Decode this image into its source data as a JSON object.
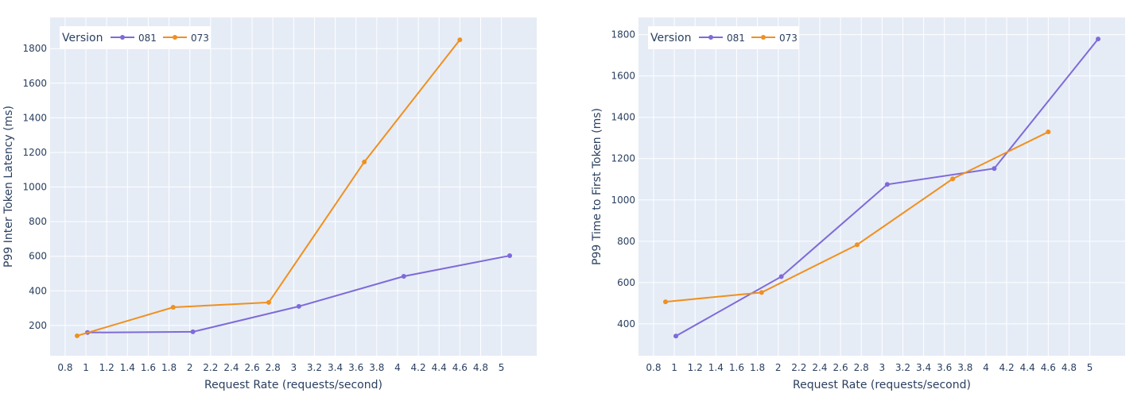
{
  "chart_data": [
    {
      "type": "line",
      "title": "",
      "xlabel": "Request Rate (requests/second)",
      "ylabel": "P99 Inter Token Latency (ms)",
      "xlim": [
        0.655,
        5.34
      ],
      "ylim": [
        25,
        1980
      ],
      "xticks": [
        0.8,
        1,
        1.2,
        1.4,
        1.6,
        1.8,
        2,
        2.2,
        2.4,
        2.6,
        2.8,
        3,
        3.2,
        3.4,
        3.6,
        3.8,
        4,
        4.2,
        4.4,
        4.6,
        4.8,
        5
      ],
      "yticks": [
        200,
        400,
        600,
        800,
        1000,
        1200,
        1400,
        1600,
        1800
      ],
      "grid": true,
      "legend": {
        "title": "Version",
        "placement": "top-left"
      },
      "series": [
        {
          "name": "081",
          "color": "#7f6ad9",
          "x": [
            1.015,
            2.03,
            3.05,
            4.06,
            5.08
          ],
          "y": [
            159,
            163,
            310,
            484,
            603
          ]
        },
        {
          "name": "073",
          "color": "#f0901f",
          "x": [
            0.915,
            1.84,
            2.76,
            3.68,
            4.6
          ],
          "y": [
            140,
            305,
            333,
            1145,
            1851
          ]
        }
      ]
    },
    {
      "type": "line",
      "title": "",
      "xlabel": "Request Rate (requests/second)",
      "ylabel": "P99 Time to First Token (ms)",
      "xlim": [
        0.655,
        5.34
      ],
      "ylim": [
        246,
        1883
      ],
      "xticks": [
        0.8,
        1,
        1.2,
        1.4,
        1.6,
        1.8,
        2,
        2.2,
        2.4,
        2.6,
        2.8,
        3,
        3.2,
        3.4,
        3.6,
        3.8,
        4,
        4.2,
        4.4,
        4.6,
        4.8,
        5
      ],
      "yticks": [
        400,
        600,
        800,
        1000,
        1200,
        1400,
        1600,
        1800
      ],
      "grid": true,
      "legend": {
        "title": "Version",
        "placement": "top-left"
      },
      "series": [
        {
          "name": "081",
          "color": "#7f6ad9",
          "x": [
            1.015,
            2.03,
            3.05,
            4.08,
            5.08
          ],
          "y": [
            341,
            629,
            1075,
            1152,
            1779
          ]
        },
        {
          "name": "073",
          "color": "#f0901f",
          "x": [
            0.915,
            1.84,
            2.76,
            3.68,
            4.6
          ],
          "y": [
            507,
            552,
            783,
            1102,
            1329
          ]
        }
      ]
    }
  ]
}
